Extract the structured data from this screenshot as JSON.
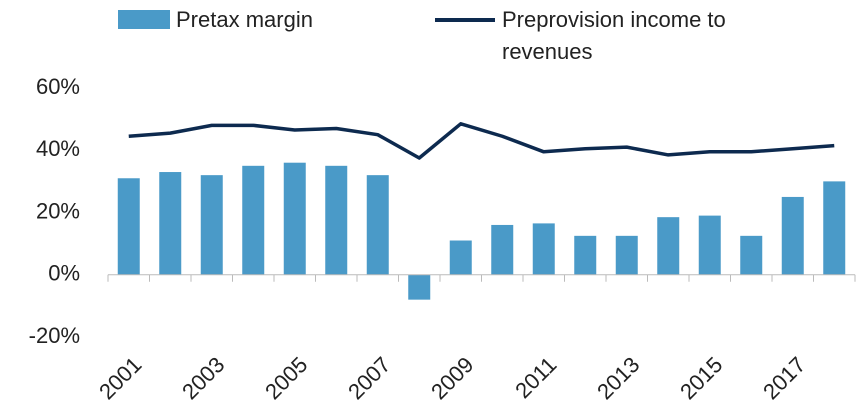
{
  "chart_data": {
    "type": "bar+line",
    "categories": [
      "2001",
      null,
      "2003",
      null,
      "2005",
      null,
      "2007",
      null,
      "2009",
      null,
      "2011",
      null,
      "2013",
      null,
      "2015",
      null,
      "2017",
      null
    ],
    "series": [
      {
        "name": "Pretax margin",
        "type": "bar",
        "color": "#4a9ac8",
        "values": [
          31,
          33,
          32,
          35,
          36,
          35,
          32,
          -8,
          11,
          16,
          16.5,
          12.5,
          12.5,
          18.5,
          19,
          12.5,
          25,
          30
        ]
      },
      {
        "name": "Preprovision income to revenues",
        "type": "line",
        "color": "#0d2a4f",
        "values": [
          44.5,
          45.5,
          48,
          48,
          46.5,
          47,
          45,
          37.5,
          48.5,
          44.5,
          39.5,
          40.5,
          41,
          38.5,
          39.5,
          39.5,
          40.5,
          41.5
        ]
      }
    ],
    "ylim": [
      -20,
      60
    ],
    "yticks": [
      {
        "value": -20,
        "label": "-20%"
      },
      {
        "value": 0,
        "label": "0%"
      },
      {
        "value": 20,
        "label": "20%"
      },
      {
        "value": 40,
        "label": "40%"
      },
      {
        "value": 60,
        "label": "60%"
      }
    ],
    "grid": false,
    "legend": "top"
  }
}
